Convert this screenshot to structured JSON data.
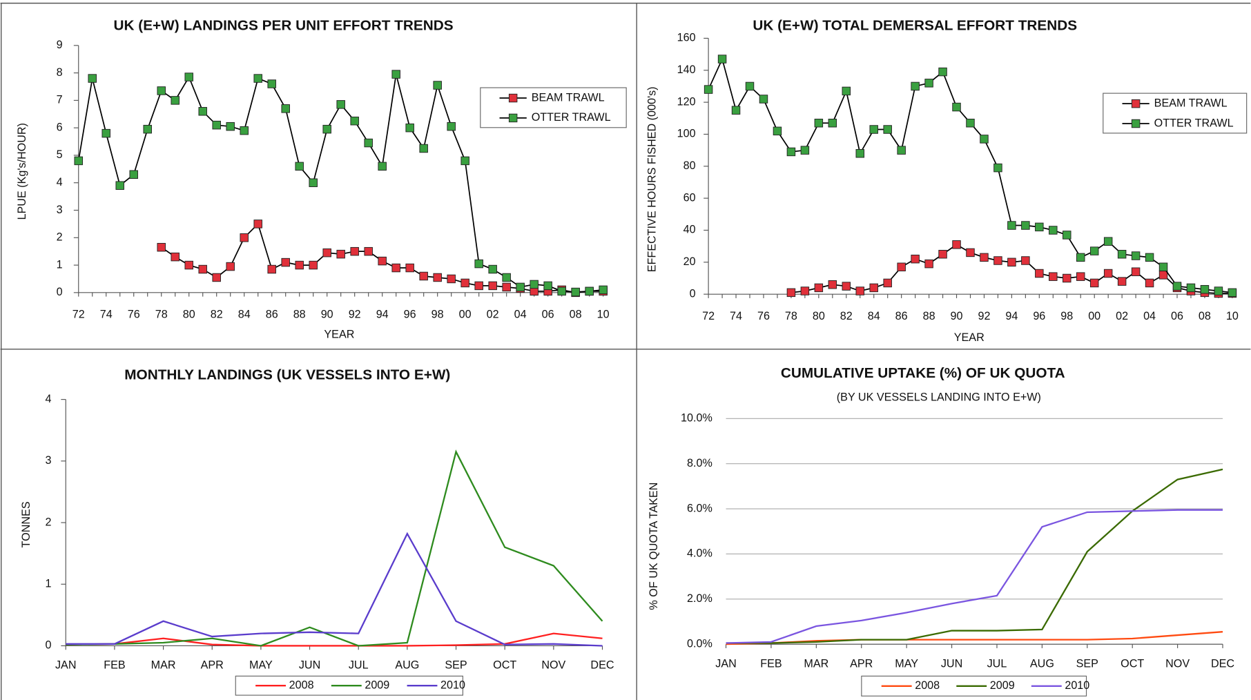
{
  "chart_data": [
    {
      "type": "line",
      "title": "UK (E+W) LANDINGS PER UNIT EFFORT TRENDS",
      "x_label": "YEAR",
      "y_label": "LPUE (Kg's/HOUR)",
      "x": [
        1972,
        1973,
        1974,
        1975,
        1976,
        1977,
        1978,
        1979,
        1980,
        1981,
        1982,
        1983,
        1984,
        1985,
        1986,
        1987,
        1988,
        1989,
        1990,
        1991,
        1992,
        1993,
        1994,
        1995,
        1996,
        1997,
        1998,
        1999,
        2000,
        2001,
        2002,
        2003,
        2004,
        2005,
        2006,
        2007,
        2008,
        2009,
        2010
      ],
      "series": [
        {
          "name": "BEAM TRAWL",
          "color": "#e0303a",
          "values": [
            null,
            null,
            null,
            null,
            null,
            null,
            1.65,
            1.3,
            1.0,
            0.85,
            0.55,
            0.95,
            2.0,
            2.5,
            0.85,
            1.1,
            1.0,
            1.0,
            1.45,
            1.4,
            1.5,
            1.5,
            1.15,
            0.9,
            0.9,
            0.6,
            0.55,
            0.5,
            0.35,
            0.25,
            0.25,
            0.2,
            0.15,
            0.05,
            0.05,
            0.1,
            0.0,
            0.05,
            0.05
          ]
        },
        {
          "name": "OTTER TRAWL",
          "color": "#3aa040",
          "values": [
            4.8,
            7.8,
            5.8,
            3.9,
            4.3,
            5.95,
            7.35,
            7.0,
            7.85,
            6.6,
            6.1,
            6.05,
            5.9,
            7.8,
            7.6,
            6.7,
            4.6,
            4.0,
            5.95,
            6.85,
            6.25,
            5.45,
            4.6,
            7.95,
            6.0,
            5.25,
            7.55,
            6.05,
            4.8,
            1.05,
            0.85,
            0.55,
            0.2,
            0.3,
            0.25,
            0.05,
            0.02,
            0.05,
            0.1
          ]
        }
      ],
      "line_color": "#000000",
      "marker": "square",
      "legend": "upper right",
      "xlim": [
        1972,
        2010
      ],
      "xticks": [
        {
          "value": 1972,
          "label": "72"
        },
        {
          "value": 1974,
          "label": "74"
        },
        {
          "value": 1976,
          "label": "76"
        },
        {
          "value": 1978,
          "label": "78"
        },
        {
          "value": 1980,
          "label": "80"
        },
        {
          "value": 1982,
          "label": "82"
        },
        {
          "value": 1984,
          "label": "84"
        },
        {
          "value": 1986,
          "label": "86"
        },
        {
          "value": 1988,
          "label": "88"
        },
        {
          "value": 1990,
          "label": "90"
        },
        {
          "value": 1992,
          "label": "92"
        },
        {
          "value": 1994,
          "label": "94"
        },
        {
          "value": 1996,
          "label": "96"
        },
        {
          "value": 1998,
          "label": "98"
        },
        {
          "value": 2000,
          "label": "00"
        },
        {
          "value": 2002,
          "label": "02"
        },
        {
          "value": 2004,
          "label": "04"
        },
        {
          "value": 2006,
          "label": "06"
        },
        {
          "value": 2008,
          "label": "08"
        },
        {
          "value": 2010,
          "label": "10"
        }
      ],
      "ylim": [
        0,
        9
      ],
      "yticks": [
        0,
        1,
        2,
        3,
        4,
        5,
        6,
        7,
        8,
        9
      ],
      "grid": false
    },
    {
      "type": "line",
      "title": "UK (E+W) TOTAL DEMERSAL EFFORT TRENDS",
      "x_label": "YEAR",
      "y_label": "EFFECTIVE HOURS FISHED (000's)",
      "x": [
        1972,
        1973,
        1974,
        1975,
        1976,
        1977,
        1978,
        1979,
        1980,
        1981,
        1982,
        1983,
        1984,
        1985,
        1986,
        1987,
        1988,
        1989,
        1990,
        1991,
        1992,
        1993,
        1994,
        1995,
        1996,
        1997,
        1998,
        1999,
        2000,
        2001,
        2002,
        2003,
        2004,
        2005,
        2006,
        2007,
        2008,
        2009,
        2010
      ],
      "series": [
        {
          "name": "BEAM TRAWL",
          "color": "#e0303a",
          "values": [
            null,
            null,
            null,
            null,
            null,
            null,
            1,
            2,
            4,
            6,
            5,
            2,
            4,
            7,
            17,
            22,
            19,
            25,
            31,
            26,
            23,
            21,
            20,
            21,
            13,
            11,
            10,
            11,
            7,
            13,
            8,
            14,
            7,
            12,
            4,
            2,
            1,
            0.5,
            0.5
          ]
        },
        {
          "name": "OTTER TRAWL",
          "color": "#3aa040",
          "values": [
            128,
            147,
            115,
            130,
            122,
            102,
            89,
            90,
            107,
            107,
            127,
            88,
            103,
            103,
            90,
            130,
            132,
            139,
            117,
            107,
            97,
            79,
            43,
            43,
            42,
            40,
            37,
            23,
            27,
            33,
            25,
            24,
            23,
            17,
            5,
            4,
            3,
            2,
            1
          ]
        }
      ],
      "line_color": "#000000",
      "marker": "square",
      "legend": "upper right",
      "xlim": [
        1972,
        2010
      ],
      "xticks": [
        {
          "value": 1972,
          "label": "72"
        },
        {
          "value": 1974,
          "label": "74"
        },
        {
          "value": 1976,
          "label": "76"
        },
        {
          "value": 1978,
          "label": "78"
        },
        {
          "value": 1980,
          "label": "80"
        },
        {
          "value": 1982,
          "label": "82"
        },
        {
          "value": 1984,
          "label": "84"
        },
        {
          "value": 1986,
          "label": "86"
        },
        {
          "value": 1988,
          "label": "88"
        },
        {
          "value": 1990,
          "label": "90"
        },
        {
          "value": 1992,
          "label": "92"
        },
        {
          "value": 1994,
          "label": "94"
        },
        {
          "value": 1996,
          "label": "96"
        },
        {
          "value": 1998,
          "label": "98"
        },
        {
          "value": 2000,
          "label": "00"
        },
        {
          "value": 2002,
          "label": "02"
        },
        {
          "value": 2004,
          "label": "04"
        },
        {
          "value": 2006,
          "label": "06"
        },
        {
          "value": 2008,
          "label": "08"
        },
        {
          "value": 2010,
          "label": "10"
        }
      ],
      "ylim": [
        0,
        160
      ],
      "yticks": [
        0,
        20,
        40,
        60,
        80,
        100,
        120,
        140,
        160
      ],
      "grid": false
    },
    {
      "type": "line",
      "title": "MONTHLY LANDINGS (UK VESSELS INTO E+W)",
      "y_label": "TONNES",
      "categories": [
        "JAN",
        "FEB",
        "MAR",
        "APR",
        "MAY",
        "JUN",
        "JUL",
        "AUG",
        "SEP",
        "OCT",
        "NOV",
        "DEC"
      ],
      "series": [
        {
          "name": "2008",
          "color": "#ff2020",
          "values": [
            0.02,
            0.03,
            0.12,
            0.02,
            0.0,
            0.0,
            0.0,
            0.0,
            0.01,
            0.03,
            0.2,
            0.12
          ]
        },
        {
          "name": "2009",
          "color": "#2e8b1e",
          "values": [
            0.02,
            0.03,
            0.05,
            0.12,
            0.0,
            0.3,
            0.0,
            0.05,
            3.15,
            1.6,
            1.3,
            0.4
          ]
        },
        {
          "name": "2010",
          "color": "#5a3ccc",
          "values": [
            0.03,
            0.03,
            0.4,
            0.15,
            0.2,
            0.22,
            0.2,
            1.82,
            0.4,
            0.02,
            0.03,
            0.0
          ]
        }
      ],
      "legend": "bottom",
      "ylim": [
        0,
        4
      ],
      "yticks": [
        0,
        1,
        2,
        3,
        4
      ],
      "grid": false
    },
    {
      "type": "line",
      "title": "CUMULATIVE UPTAKE (%) OF UK QUOTA",
      "subtitle": "(BY UK VESSELS LANDING INTO E+W)",
      "y_label": "% OF UK QUOTA TAKEN",
      "categories": [
        "JAN",
        "FEB",
        "MAR",
        "APR",
        "MAY",
        "JUN",
        "JUL",
        "AUG",
        "SEP",
        "OCT",
        "NOV",
        "DEC"
      ],
      "series": [
        {
          "name": "2008",
          "color": "#ff4a10",
          "values": [
            0.0,
            0.05,
            0.15,
            0.2,
            0.2,
            0.2,
            0.2,
            0.2,
            0.2,
            0.25,
            0.4,
            0.55
          ]
        },
        {
          "name": "2009",
          "color": "#3a6a00",
          "values": [
            0.05,
            0.05,
            0.1,
            0.2,
            0.2,
            0.6,
            0.6,
            0.65,
            4.1,
            5.9,
            7.3,
            7.75
          ]
        },
        {
          "name": "2010",
          "color": "#7a55e0",
          "values": [
            0.05,
            0.1,
            0.8,
            1.05,
            1.4,
            1.8,
            2.15,
            5.2,
            5.85,
            5.9,
            5.95,
            5.95
          ]
        }
      ],
      "legend": "bottom",
      "ylim": [
        0,
        10
      ],
      "yticks": [
        {
          "value": 0,
          "label": "0.0%"
        },
        {
          "value": 2,
          "label": "2.0%"
        },
        {
          "value": 4,
          "label": "4.0%"
        },
        {
          "value": 6,
          "label": "6.0%"
        },
        {
          "value": 8,
          "label": "8.0%"
        },
        {
          "value": 10,
          "label": "10.0%"
        }
      ],
      "grid": true
    }
  ]
}
